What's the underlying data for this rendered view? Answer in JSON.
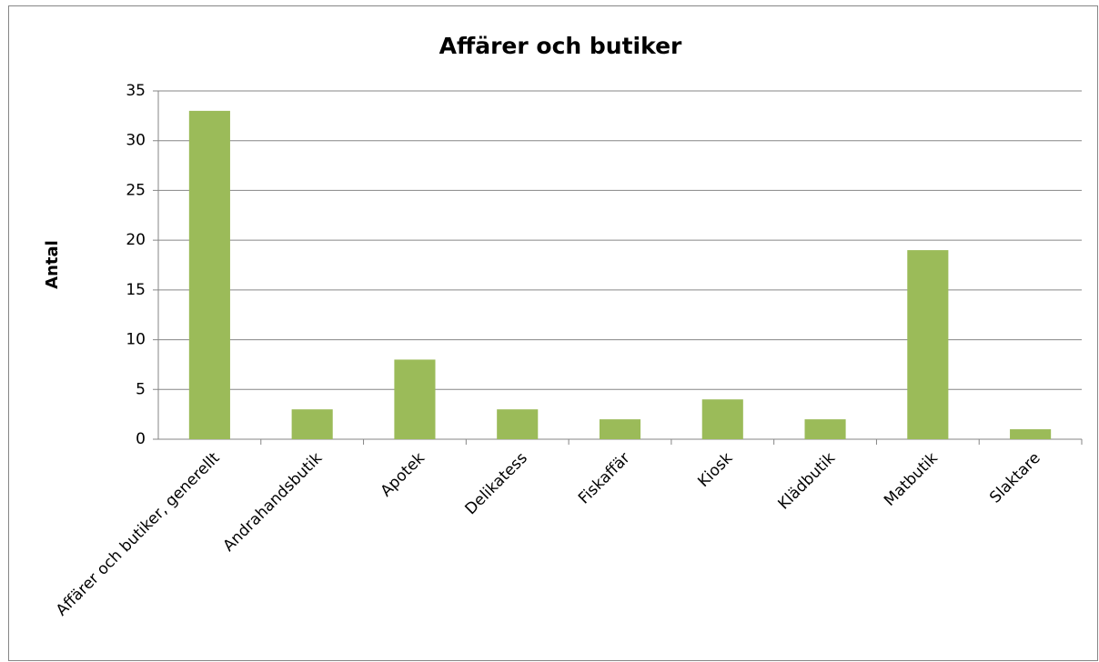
{
  "chart_data": {
    "type": "bar",
    "title": "Affärer och butiker",
    "y_label": "Antal",
    "categories": [
      "Affärer och butiker, generellt",
      "Andrahandsbutik",
      "Apotek",
      "Delikatess",
      "Fiskaffär",
      "Kiosk",
      "Klädbutik",
      "Matbutik",
      "Slaktare"
    ],
    "values": [
      33,
      3,
      8,
      3,
      2,
      4,
      2,
      19,
      1
    ],
    "color": "#9bbb59",
    "ylim": [
      0,
      35
    ],
    "yticks": [
      0,
      5,
      10,
      15,
      20,
      25,
      30,
      35
    ],
    "grid": true
  }
}
